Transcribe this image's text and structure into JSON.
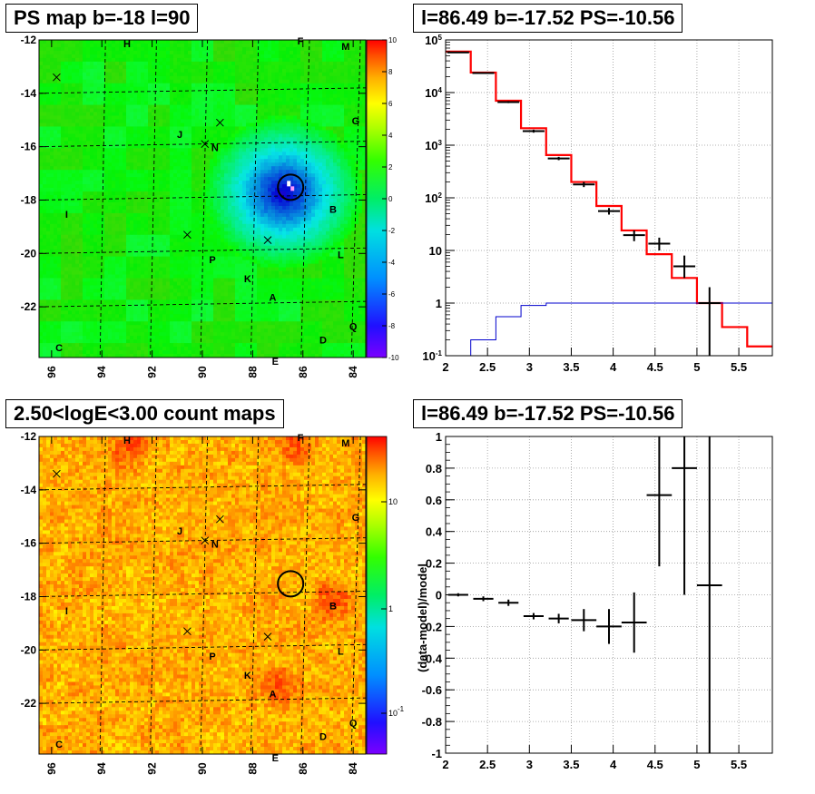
{
  "panels": {
    "tl_title": "PS map b=-18 l=90",
    "tr_title": "l=86.49 b=-17.52 PS=-10.56",
    "bl_title": "2.50<logE<3.00 count maps",
    "br_title": "l=86.49 b=-17.52 PS=-10.56"
  },
  "chart_data": [
    {
      "type": "heatmap",
      "title": "PS map b=-18 l=90",
      "x_ticks": [
        "96",
        "94",
        "92",
        "90",
        "88",
        "86",
        "84"
      ],
      "y_ticks": [
        "-12",
        "-14",
        "-16",
        "-18",
        "-20",
        "-22"
      ],
      "xlim": [
        96.5,
        83.5
      ],
      "ylim": [
        -23.9,
        -12
      ],
      "colorbar_ticks": [
        "10",
        "8",
        "6",
        "4",
        "2",
        "0",
        "-2",
        "-4",
        "-6",
        "-8",
        "-10"
      ],
      "colorbar_range": [
        -10,
        10
      ],
      "circle_marker": {
        "x": 86.49,
        "y": -17.52
      },
      "source_labels": [
        {
          "text": "H",
          "x": 93.0,
          "y": -12.1
        },
        {
          "text": "F",
          "x": 86.1,
          "y": -12.0
        },
        {
          "text": "M",
          "x": 84.3,
          "y": -12.2
        },
        {
          "text": "G",
          "x": 83.9,
          "y": -15.0
        },
        {
          "text": "J",
          "x": 90.9,
          "y": -15.5
        },
        {
          "text": "N",
          "x": 89.5,
          "y": -16.0
        },
        {
          "text": "B",
          "x": 84.8,
          "y": -18.3
        },
        {
          "text": "I",
          "x": 95.4,
          "y": -18.5
        },
        {
          "text": "L",
          "x": 84.5,
          "y": -20.0
        },
        {
          "text": "P",
          "x": 89.6,
          "y": -20.2
        },
        {
          "text": "K",
          "x": 88.2,
          "y": -20.9
        },
        {
          "text": "A",
          "x": 87.2,
          "y": -21.6
        },
        {
          "text": "Q",
          "x": 84.0,
          "y": -22.7
        },
        {
          "text": "D",
          "x": 85.2,
          "y": -23.2
        },
        {
          "text": "C",
          "x": 95.7,
          "y": -23.5
        },
        {
          "text": "E",
          "x": 87.1,
          "y": -24.0
        }
      ],
      "cross_markers": [
        {
          "x": 95.8,
          "y": -13.4
        },
        {
          "x": 89.3,
          "y": -15.1
        },
        {
          "x": 89.9,
          "y": -15.9
        },
        {
          "x": 90.6,
          "y": -19.3
        },
        {
          "x": 87.4,
          "y": -19.5
        }
      ]
    },
    {
      "type": "line",
      "title": "l=86.49 b=-17.52 PS=-10.56",
      "log_y": true,
      "xlim": [
        2.0,
        5.9
      ],
      "ylim": [
        0.1,
        100000
      ],
      "x_ticks": [
        "2",
        "2.5",
        "3",
        "3.5",
        "4",
        "4.5",
        "5",
        "5.5"
      ],
      "y_ticks": [
        "10^-1",
        "1",
        "10",
        "10^2",
        "10^3",
        "10^4",
        "10^5"
      ],
      "bin_edges": [
        2.0,
        2.3,
        2.6,
        2.9,
        3.2,
        3.5,
        3.8,
        4.1,
        4.4,
        4.7,
        5.0,
        5.3,
        5.6,
        5.9
      ],
      "series": [
        {
          "kind": "model_step",
          "color": "#ff0000",
          "values": [
            60000,
            24000,
            7000,
            2100,
            650,
            200,
            70,
            24,
            8.5,
            3.0,
            1.0,
            0.35,
            0.15
          ]
        },
        {
          "kind": "source_step",
          "color": "#0000cc",
          "values": [
            0.1,
            0.2,
            0.55,
            0.9,
            1.0,
            1.0,
            1.0,
            1.0,
            1.0,
            1.0,
            1.0,
            1.0,
            1.0
          ]
        },
        {
          "kind": "data_points",
          "color": "#000000",
          "points": [
            {
              "x": 2.15,
              "y": 58000,
              "elo": 1000,
              "ehi": 1000
            },
            {
              "x": 2.45,
              "y": 23500,
              "elo": 600,
              "ehi": 600
            },
            {
              "x": 2.75,
              "y": 6600,
              "elo": 300,
              "ehi": 300
            },
            {
              "x": 3.05,
              "y": 1850,
              "elo": 120,
              "ehi": 120
            },
            {
              "x": 3.35,
              "y": 560,
              "elo": 40,
              "ehi": 40
            },
            {
              "x": 3.65,
              "y": 180,
              "elo": 20,
              "ehi": 20
            },
            {
              "x": 3.95,
              "y": 56,
              "elo": 8,
              "ehi": 8
            },
            {
              "x": 4.25,
              "y": 19.5,
              "elo": 4.5,
              "ehi": 4.5
            },
            {
              "x": 4.55,
              "y": 13.5,
              "elo": 3.5,
              "ehi": 4
            },
            {
              "x": 4.85,
              "y": 5.0,
              "elo": 2.0,
              "ehi": 3.0
            },
            {
              "x": 5.15,
              "y": 1.0,
              "elo": 0.9,
              "ehi": 1.0
            }
          ]
        }
      ]
    },
    {
      "type": "heatmap",
      "title": "2.50<logE<3.00 count maps",
      "x_ticks": [
        "96",
        "94",
        "92",
        "90",
        "88",
        "86",
        "84"
      ],
      "y_ticks": [
        "-12",
        "-14",
        "-16",
        "-18",
        "-20",
        "-22"
      ],
      "xlim": [
        96.5,
        83.5
      ],
      "ylim": [
        -23.9,
        -12
      ],
      "colorbar_ticks": [
        "10",
        "1",
        "10^-1"
      ],
      "circle_marker": {
        "x": 86.49,
        "y": -17.52
      },
      "hot_spots": [
        {
          "x": 87.0,
          "y": -21.4
        },
        {
          "x": 84.9,
          "y": -18.1
        },
        {
          "x": 93.0,
          "y": -12.3
        },
        {
          "x": 86.3,
          "y": -12.1
        }
      ]
    },
    {
      "type": "scatter",
      "title": "l=86.49 b=-17.52 PS=-10.56",
      "ylabel": "(data-model)/model",
      "xlim": [
        2.0,
        5.9
      ],
      "ylim": [
        -1.0,
        1.0
      ],
      "x_ticks": [
        "2",
        "2.5",
        "3",
        "3.5",
        "4",
        "4.5",
        "5",
        "5.5"
      ],
      "y_ticks": [
        "-1",
        "-0.8",
        "-0.6",
        "-0.4",
        "-0.2",
        "0",
        "0.2",
        "0.4",
        "0.6",
        "0.8",
        "1"
      ],
      "points": [
        {
          "x": 2.15,
          "y": 0.0,
          "xerr": 0.12,
          "yerr": 0.01
        },
        {
          "x": 2.45,
          "y": -0.025,
          "xerr": 0.12,
          "yerr": 0.015
        },
        {
          "x": 2.75,
          "y": -0.05,
          "xerr": 0.12,
          "yerr": 0.02
        },
        {
          "x": 3.05,
          "y": -0.135,
          "xerr": 0.12,
          "yerr": 0.02
        },
        {
          "x": 3.35,
          "y": -0.15,
          "xerr": 0.12,
          "yerr": 0.03
        },
        {
          "x": 3.65,
          "y": -0.16,
          "xerr": 0.15,
          "yerr": 0.07
        },
        {
          "x": 3.95,
          "y": -0.2,
          "xerr": 0.15,
          "yerr": 0.11
        },
        {
          "x": 4.25,
          "y": -0.175,
          "xerr": 0.15,
          "yerr": 0.19
        },
        {
          "x": 4.55,
          "y": 0.63,
          "xerr": 0.15,
          "yerr": 0.45
        },
        {
          "x": 4.85,
          "y": 0.8,
          "xerr": 0.15,
          "yerr": 0.8
        },
        {
          "x": 5.15,
          "y": 0.06,
          "xerr": 0.15,
          "yerr": 1.1
        }
      ]
    }
  ]
}
